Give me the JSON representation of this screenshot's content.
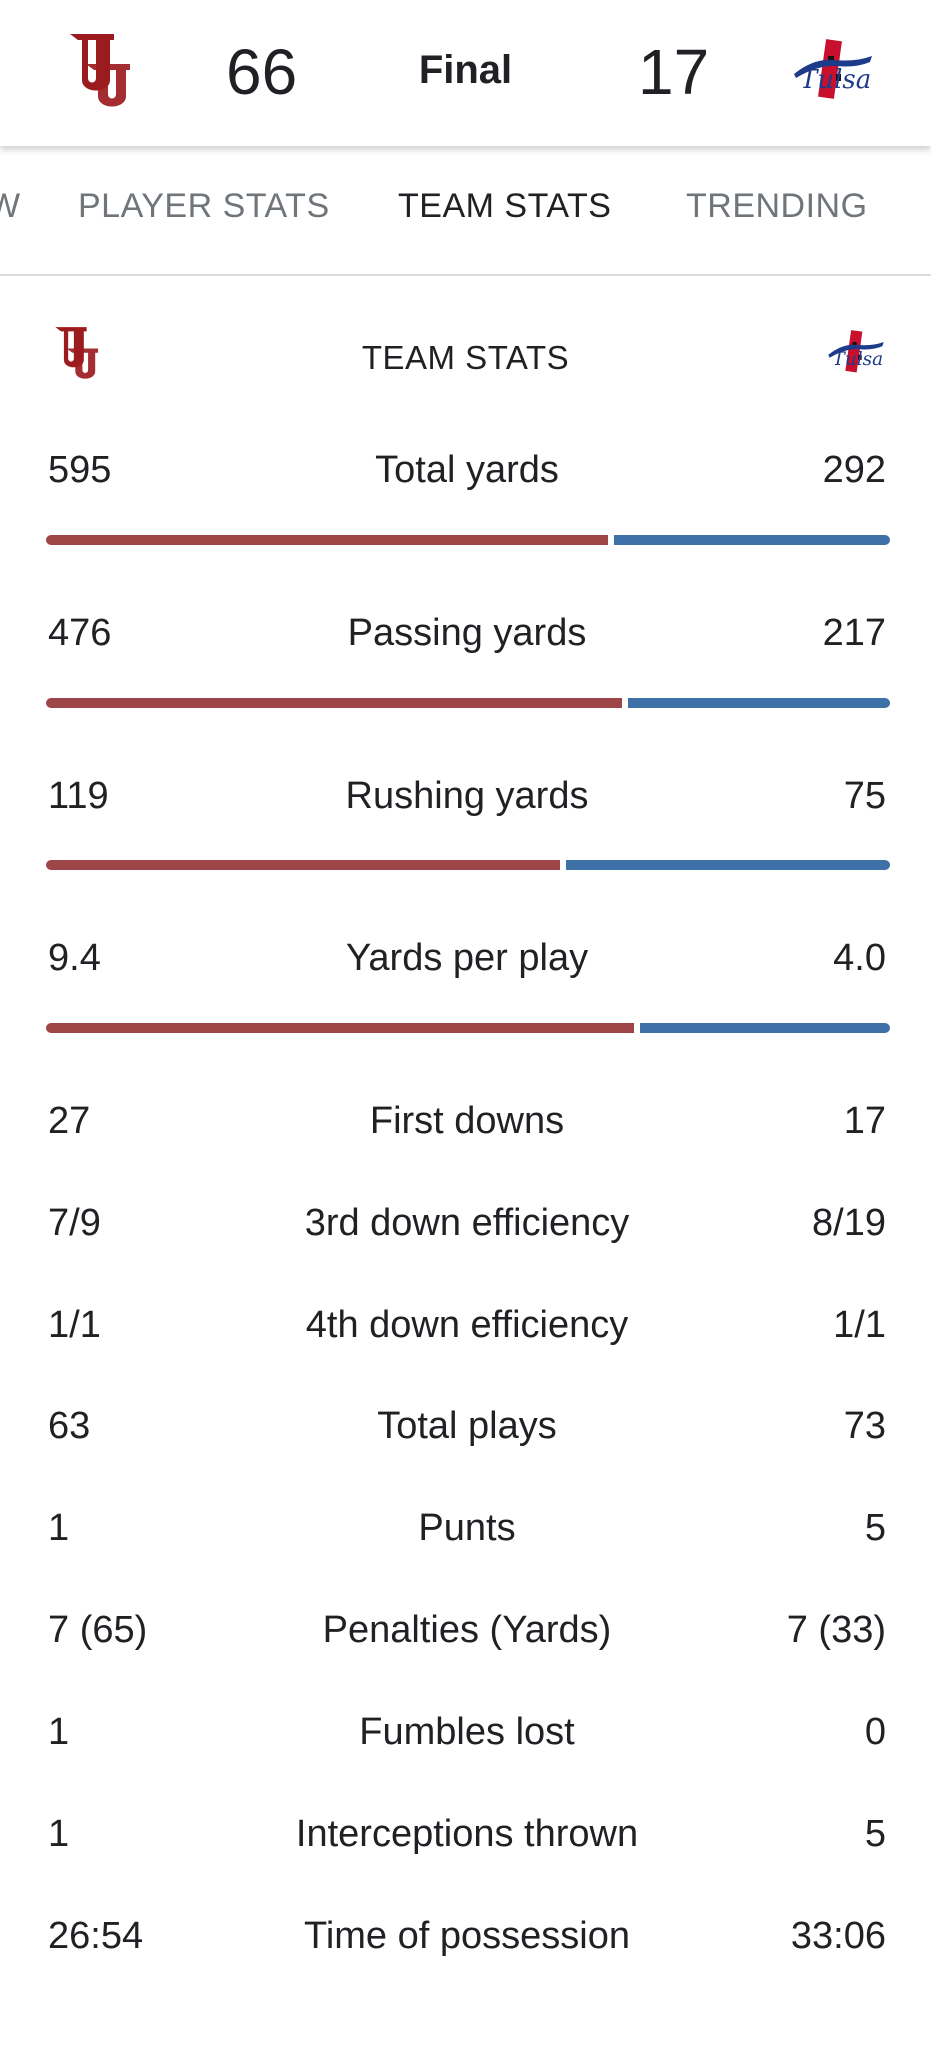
{
  "header": {
    "home_score": "66",
    "status": "Final",
    "away_score": "17",
    "home_team_logo_icon": "ou-logo-icon",
    "away_team_logo_icon": "tulsa-logo-icon",
    "home_color": "#9e4647",
    "away_color": "#3e71a8"
  },
  "tabs": [
    {
      "label": "W",
      "active": false
    },
    {
      "label": "PLAYER STATS",
      "active": false
    },
    {
      "label": "TEAM STATS",
      "active": true
    },
    {
      "label": "TRENDING",
      "active": false
    }
  ],
  "team_stats": {
    "title": "TEAM STATS",
    "bar_rows": [
      {
        "label": "Total yards",
        "home": "595",
        "away": "292",
        "home_value": 595,
        "away_value": 292
      },
      {
        "label": "Passing yards",
        "home": "476",
        "away": "217",
        "home_value": 476,
        "away_value": 217
      },
      {
        "label": "Rushing yards",
        "home": "119",
        "away": "75",
        "home_value": 119,
        "away_value": 75
      },
      {
        "label": "Yards per play",
        "home": "9.4",
        "away": "4.0",
        "home_value": 9.4,
        "away_value": 4.0
      }
    ],
    "rows": [
      {
        "label": "First downs",
        "home": "27",
        "away": "17"
      },
      {
        "label": "3rd down efficiency",
        "home": "7/9",
        "away": "8/19"
      },
      {
        "label": "4th down efficiency",
        "home": "1/1",
        "away": "1/1"
      },
      {
        "label": "Total plays",
        "home": "63",
        "away": "73"
      },
      {
        "label": "Punts",
        "home": "1",
        "away": "5"
      },
      {
        "label": "Penalties (Yards)",
        "home": "7 (65)",
        "away": "7 (33)"
      },
      {
        "label": "Fumbles lost",
        "home": "1",
        "away": "0"
      },
      {
        "label": "Interceptions thrown",
        "home": "1",
        "away": "5"
      },
      {
        "label": "Time of possession",
        "home": "26:54",
        "away": "33:06"
      }
    ]
  }
}
